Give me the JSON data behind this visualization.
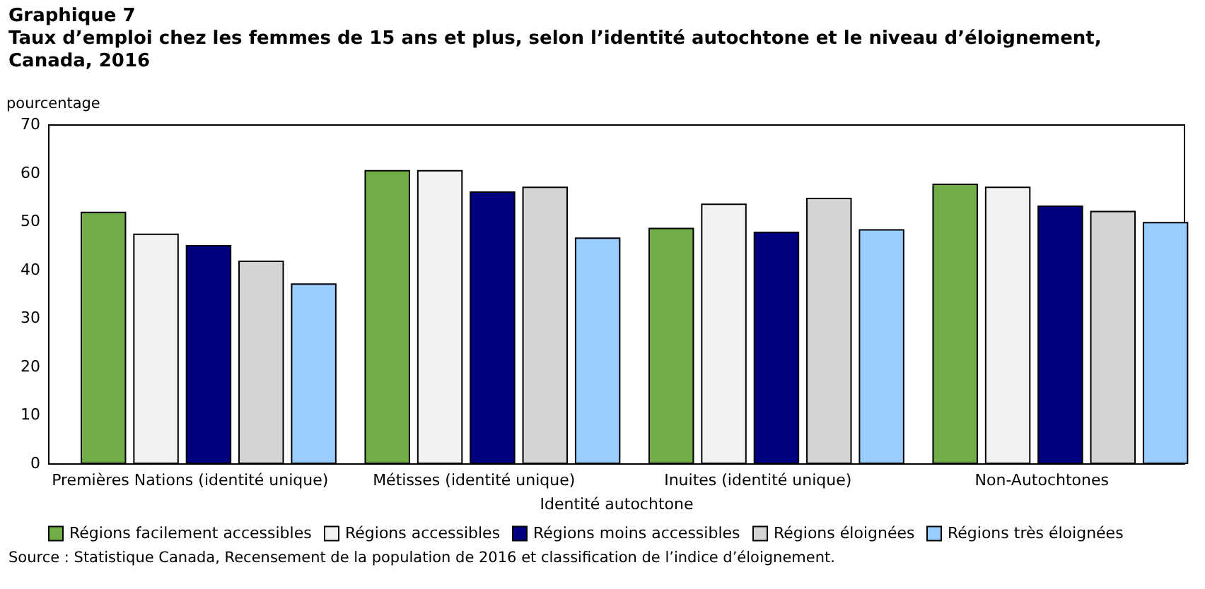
{
  "chart_data": {
    "type": "bar",
    "title": "Graphique 7",
    "subtitle": "Taux d’emploi chez les femmes de 15 ans et plus, selon l’identité autochtone et le niveau d’éloignement, Canada, 2016",
    "ylabel": "pourcentage",
    "xlabel": "Identité autochtone",
    "categories": [
      "Premières Nations (identité unique)",
      "Métisses (identité unique)",
      "Inuites (identité unique)",
      "Non-Autochtones"
    ],
    "series": [
      {
        "name": "Régions facilement accessibles",
        "color": "#70ad47",
        "values": [
          51.8,
          60.4,
          48.5,
          57.6
        ]
      },
      {
        "name": "Régions accessibles",
        "color": "#f2f2f2",
        "values": [
          47.3,
          60.4,
          53.5,
          57.0
        ]
      },
      {
        "name": "Régions moins accessibles",
        "color": "#000080",
        "values": [
          44.9,
          56.0,
          47.7,
          53.1
        ]
      },
      {
        "name": "Régions éloignées",
        "color": "#d4d4d4",
        "values": [
          41.7,
          57.0,
          54.7,
          52.0
        ]
      },
      {
        "name": "Régions très éloignées",
        "color": "#99ccff",
        "values": [
          37.0,
          46.5,
          48.2,
          49.7
        ]
      }
    ],
    "ylim": [
      0,
      70
    ],
    "yticks": [
      0,
      10,
      20,
      30,
      40,
      50,
      60,
      70
    ],
    "grid": false,
    "legend": "bottom",
    "annotations": [
      "Source : Statistique Canada, Recensement de la population de 2016 et classification de l’indice d’éloignement."
    ]
  }
}
